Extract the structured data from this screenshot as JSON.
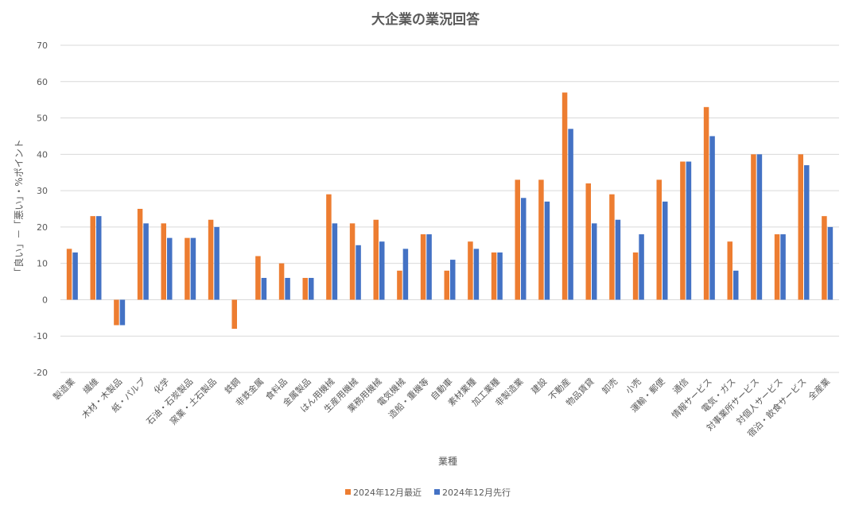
{
  "chart_data": {
    "type": "bar",
    "title": "大企業の業況回答",
    "xlabel": "業種",
    "ylabel": "「良い」－「悪い」・%ポイント",
    "ylim": [
      -20,
      70
    ],
    "yticks": [
      -20,
      -10,
      0,
      10,
      20,
      30,
      40,
      50,
      60,
      70
    ],
    "grid": true,
    "legend_position": "bottom",
    "categories": [
      "製造業",
      "繊維",
      "木材・木製品",
      "紙・パルプ",
      "化学",
      "石油・石炭製品",
      "窯業・土石製品",
      "鉄鋼",
      "非鉄金属",
      "食料品",
      "金属製品",
      "はん用機械",
      "生産用機械",
      "業務用機械",
      "電気機械",
      "造船・重機等",
      "自動車",
      "素材業種",
      "加工業種",
      "非製造業",
      "建設",
      "不動産",
      "物品賃貸",
      "卸売",
      "小売",
      "運輸・郵便",
      "通信",
      "情報サービス",
      "電気・ガス",
      "対事業所サービス",
      "対個人サービス",
      "宿泊・飲食サービス",
      "全産業"
    ],
    "series": [
      {
        "name": "2024年12月最近",
        "color": "#ed7d31",
        "values": [
          14,
          23,
          -7,
          25,
          21,
          17,
          22,
          -8,
          12,
          10,
          6,
          29,
          21,
          22,
          8,
          18,
          8,
          16,
          13,
          33,
          33,
          57,
          32,
          29,
          13,
          33,
          38,
          53,
          16,
          40,
          18,
          40,
          23
        ]
      },
      {
        "name": "2024年12月先行",
        "color": "#4472c4",
        "values": [
          13,
          23,
          -7,
          21,
          17,
          17,
          20,
          0,
          6,
          6,
          6,
          21,
          15,
          16,
          14,
          18,
          11,
          14,
          13,
          28,
          27,
          47,
          21,
          22,
          18,
          27,
          38,
          45,
          8,
          40,
          18,
          37,
          20
        ]
      }
    ]
  }
}
